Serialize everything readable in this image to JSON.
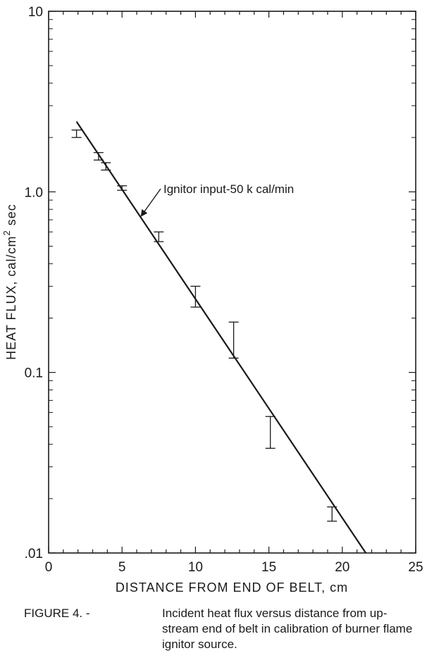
{
  "chart_data": {
    "type": "scatter",
    "title": "",
    "xlabel": "DISTANCE FROM END OF BELT, cm",
    "ylabel_main": "HEAT FLUX, cal/cm",
    "ylabel_sup": "2",
    "ylabel_tail": " sec",
    "xlim": [
      0,
      25
    ],
    "ylim": [
      0.01,
      10
    ],
    "y_scale": "log",
    "grid": false,
    "x_ticks": [
      0,
      5,
      10,
      15,
      20,
      25
    ],
    "x_tick_labels": [
      "0",
      "5",
      "10",
      "15",
      "20",
      "25"
    ],
    "y_tick_values": [
      0.01,
      0.1,
      1.0,
      10
    ],
    "y_tick_labels": [
      ".01",
      "0.1",
      "1.0",
      "10"
    ],
    "measurements": [
      {
        "x": 1.9,
        "y": 2.1,
        "y_low": 2.0,
        "y_high": 2.2
      },
      {
        "x": 3.4,
        "y": 1.55,
        "y_low": 1.5,
        "y_high": 1.65
      },
      {
        "x": 3.9,
        "y": 1.38,
        "y_low": 1.32,
        "y_high": 1.45
      },
      {
        "x": 5.0,
        "y": 1.05,
        "y_low": 1.02,
        "y_high": 1.08
      },
      {
        "x": 7.5,
        "y": 0.56,
        "y_low": 0.53,
        "y_high": 0.6
      },
      {
        "x": 10.0,
        "y": 0.26,
        "y_low": 0.23,
        "y_high": 0.3
      },
      {
        "x": 12.6,
        "y": 0.13,
        "y_low": 0.12,
        "y_high": 0.19
      },
      {
        "x": 15.1,
        "y": 0.05,
        "y_low": 0.038,
        "y_high": 0.057
      },
      {
        "x": 19.3,
        "y": 0.016,
        "y_low": 0.015,
        "y_high": 0.018
      }
    ],
    "fit_line": {
      "x": [
        1.9,
        21.6
      ],
      "y": [
        2.45,
        0.01
      ]
    },
    "annotation": {
      "text": "Ignitor input-50 k cal/min",
      "arrow_to": {
        "x": 6.2,
        "y": 0.72
      }
    }
  },
  "caption": {
    "label": "FIGURE 4. -",
    "text": "Incident heat flux versus distance from up-stream end of belt in calibration of burner flame ignitor source."
  }
}
